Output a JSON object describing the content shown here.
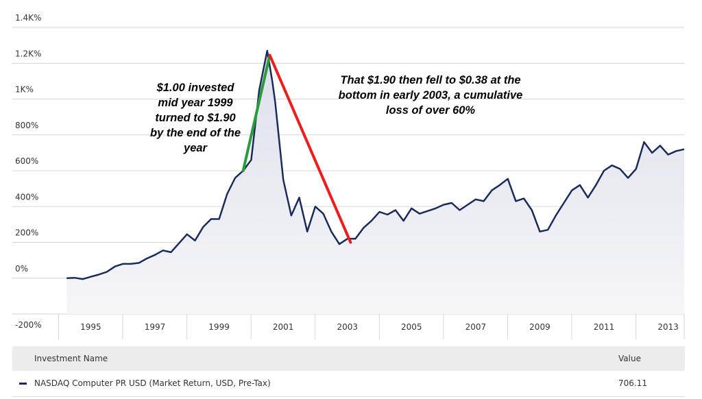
{
  "chart_data": {
    "type": "area",
    "y_ticks": [
      "1.4K%",
      "1.2K%",
      "1K%",
      "800%",
      "600%",
      "400%",
      "200%",
      "0%",
      "-200%"
    ],
    "x_ticks": [
      "1995",
      "1997",
      "1999",
      "2001",
      "2003",
      "2005",
      "2007",
      "2009",
      "2011",
      "2013"
    ],
    "xlim": [
      1994.2,
      2013.5
    ],
    "ylim": [
      -200,
      1400
    ],
    "grid": true,
    "series": [
      {
        "name": "NASDAQ Computer PR USD (Market Return, USD, Pre-Tax)",
        "color": "#1b2a5c",
        "x": [
          1994.25,
          1994.5,
          1994.75,
          1995.0,
          1995.25,
          1995.5,
          1995.75,
          1996.0,
          1996.25,
          1996.5,
          1996.75,
          1997.0,
          1997.25,
          1997.5,
          1997.75,
          1998.0,
          1998.25,
          1998.5,
          1998.75,
          1999.0,
          1999.25,
          1999.5,
          1999.75,
          2000.0,
          2000.25,
          2000.5,
          2000.66,
          2000.75,
          2001.0,
          2001.25,
          2001.5,
          2001.75,
          2002.0,
          2002.25,
          2002.5,
          2002.75,
          2003.0,
          2003.25,
          2003.5,
          2003.75,
          2004.0,
          2004.25,
          2004.5,
          2004.75,
          2005.0,
          2005.25,
          2005.5,
          2005.75,
          2006.0,
          2006.25,
          2006.5,
          2006.75,
          2007.0,
          2007.25,
          2007.5,
          2007.75,
          2008.0,
          2008.25,
          2008.5,
          2008.75,
          2009.0,
          2009.25,
          2009.5,
          2009.75,
          2010.0,
          2010.25,
          2010.5,
          2010.75,
          2011.0,
          2011.25,
          2011.5,
          2011.75,
          2012.0,
          2012.25,
          2012.5,
          2012.75,
          2013.0,
          2013.25,
          2013.5
        ],
        "values": [
          0,
          2,
          -5,
          8,
          20,
          35,
          65,
          80,
          80,
          85,
          110,
          130,
          155,
          145,
          195,
          245,
          210,
          285,
          330,
          330,
          470,
          560,
          600,
          660,
          1050,
          1270,
          1100,
          980,
          550,
          350,
          450,
          260,
          400,
          360,
          260,
          190,
          220,
          220,
          280,
          320,
          370,
          355,
          380,
          320,
          390,
          360,
          375,
          390,
          410,
          420,
          380,
          410,
          440,
          430,
          490,
          520,
          555,
          430,
          445,
          380,
          260,
          270,
          350,
          420,
          490,
          520,
          450,
          520,
          600,
          630,
          610,
          560,
          610,
          760,
          700,
          740,
          690,
          710,
          720
        ]
      }
    ],
    "annotations": [
      {
        "kind": "segment",
        "color": "#2a9d3a",
        "from": [
          1999.75,
          600
        ],
        "to": [
          2000.58,
          1245
        ],
        "lines": [
          "$1.00 invested",
          "mid year 1999",
          "turned to $1.90",
          "by the end of the",
          "year"
        ]
      },
      {
        "kind": "segment",
        "color": "#ee1c1c",
        "from": [
          2000.58,
          1245
        ],
        "to": [
          2003.1,
          200
        ],
        "lines": [
          "That $1.90 then fell to $0.38 at the",
          "bottom in early 2003, a cumulative",
          "loss of over 60%"
        ]
      }
    ]
  },
  "legend": {
    "header_name": "Investment Name",
    "header_value": "Value",
    "rows": [
      {
        "name": "NASDAQ Computer PR USD (Market Return, USD, Pre-Tax)",
        "value": "706.11",
        "color": "#1b2a5c"
      }
    ]
  }
}
